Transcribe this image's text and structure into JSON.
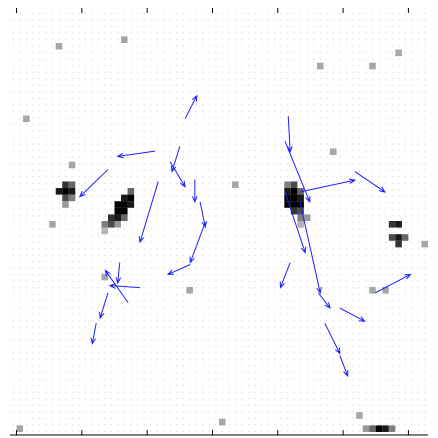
{
  "chart_data": {
    "type": "quiver",
    "xlim": [
      0,
      64
    ],
    "ylim": [
      0,
      64
    ],
    "y_reversed": true,
    "xticks": [
      1,
      11,
      21,
      31,
      41,
      51,
      61
    ],
    "grid": true,
    "color": "#1f1fff",
    "image": {
      "x": [
        8,
        9,
        7,
        8,
        9,
        8,
        9,
        8,
        18,
        17,
        18,
        16,
        17,
        18,
        16,
        17,
        15,
        16,
        17,
        14,
        15,
        16,
        14,
        42,
        43,
        42,
        43,
        44,
        42,
        43,
        44,
        42,
        43,
        44,
        43,
        44,
        44,
        45,
        44,
        58,
        59,
        58,
        59,
        60,
        59,
        54,
        55,
        56,
        57,
        58,
        7,
        17,
        59,
        47,
        55,
        2,
        9,
        34,
        49,
        6,
        14,
        27,
        55,
        57,
        63,
        32,
        53,
        1
      ],
      "y": [
        26,
        26,
        27,
        27,
        27,
        28,
        28,
        29,
        27,
        28,
        28,
        29,
        29,
        29,
        30,
        30,
        31,
        31,
        31,
        32,
        32,
        32,
        33,
        26,
        26,
        27,
        27,
        27,
        28,
        28,
        28,
        29,
        29,
        29,
        30,
        30,
        31,
        31,
        32,
        32,
        32,
        34,
        34,
        34,
        35,
        63,
        63,
        63,
        63,
        63,
        5,
        4,
        6,
        8,
        8,
        16,
        23,
        26,
        21,
        32,
        40,
        42,
        42,
        42,
        35,
        62,
        61,
        63
      ],
      "values": [
        0.8,
        0.6,
        0.9,
        1,
        0.9,
        0.7,
        0.5,
        0.4,
        0.6,
        0.9,
        1,
        1,
        1,
        0.9,
        1,
        1,
        0.8,
        0.9,
        0.6,
        0.5,
        0.7,
        0.4,
        0.3,
        0.5,
        0.7,
        0.9,
        1,
        0.6,
        1,
        1,
        0.9,
        1,
        1,
        1,
        0.8,
        0.7,
        0.5,
        0.4,
        0.3,
        0.8,
        0.9,
        0.7,
        0.9,
        0.6,
        0.8,
        0.4,
        0.6,
        1,
        0.9,
        0.5,
        0.35,
        0.35,
        0.35,
        0.35,
        0.35,
        0.35,
        0.35,
        0.35,
        0.35,
        0.35,
        0.35,
        0.35,
        0.35,
        0.35,
        0.35,
        0.35,
        0.35,
        0.35
      ]
    },
    "x": [
      26.8,
      26.0,
      22.2,
      24.5,
      15.0,
      28.3,
      29.1,
      22.7,
      29.9,
      27.6,
      19.9,
      18.1,
      16.8,
      15.0,
      13.2,
      42.6,
      42.1,
      44.4,
      52.8,
      44.4,
      42.1,
      42.9,
      47.2,
      50.5,
      55.9,
      48.2,
      50.5
    ],
    "y": [
      16.5,
      20.7,
      21.4,
      23.0,
      24.2,
      25.7,
      29.1,
      26.0,
      32.2,
      38.6,
      42.1,
      44.4,
      38.3,
      42.9,
      47.5,
      16.1,
      19.9,
      27.6,
      24.5,
      29.1,
      27.6,
      38.3,
      42.9,
      45.2,
      42.9,
      47.5,
      52.4
    ],
    "u": [
      1.8,
      -1.2,
      -5.7,
      2.3,
      -4.3,
      0,
      0.8,
      -2.8,
      -2.3,
      -3.4,
      -4.6,
      -3.5,
      -0.3,
      -1.2,
      -0.6,
      0.3,
      3.8,
      8.4,
      4.6,
      3.1,
      3.1,
      -1.5,
      1.8,
      3.8,
      5.4,
      2.3,
      1.2
    ],
    "v": [
      -3.5,
      3.8,
      0.8,
      3.8,
      4.1,
      3.4,
      3.8,
      9.2,
      6.1,
      1.5,
      -0.3,
      -4.9,
      3.1,
      3.8,
      3.1,
      5.4,
      9.2,
      -1.8,
      3.1,
      13.8,
      9.2,
      3.8,
      2.3,
      2.0,
      -2.8,
      4.6,
      3.1
    ]
  }
}
